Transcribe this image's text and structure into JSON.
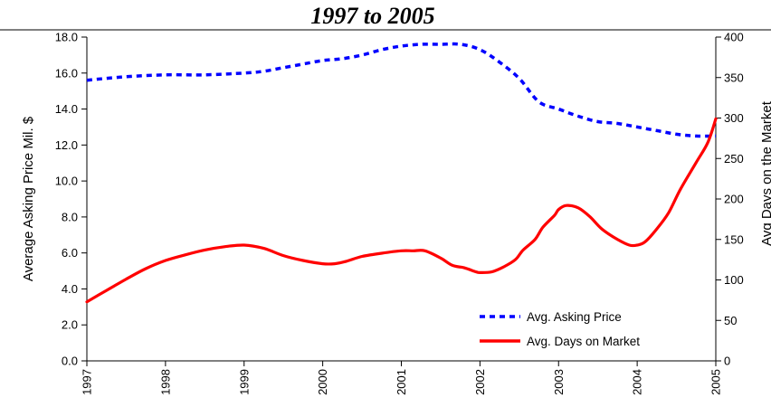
{
  "chart_data": {
    "type": "line",
    "title": "1997 to 2005",
    "x_tick_labels": [
      "1997",
      "1998",
      "1999",
      "2000",
      "2001",
      "2002",
      "2003",
      "2004",
      "2005"
    ],
    "xlim": [
      1997,
      2005
    ],
    "y_left": {
      "label": "Average Asking Price Mil. $",
      "ylim": [
        0,
        18
      ],
      "tick_labels": [
        "0.0",
        "2.0",
        "4.0",
        "6.0",
        "8.0",
        "10.0",
        "12.0",
        "14.0",
        "16.0",
        "18.0"
      ]
    },
    "y_right": {
      "label": "Avg Days on the Market",
      "ylim": [
        0,
        400
      ],
      "tick_labels": [
        "0",
        "50",
        "100",
        "150",
        "200",
        "250",
        "300",
        "350",
        "400"
      ]
    },
    "grid": false,
    "legend_position": "bottom-right",
    "series": [
      {
        "name": "Avg. Asking Price",
        "axis": "left",
        "style": "dashed",
        "color": "#0000ff",
        "x": [
          1997,
          1997.5,
          1998,
          1998.5,
          1999,
          1999.25,
          1999.5,
          1999.75,
          2000,
          2000.25,
          2000.5,
          2000.75,
          2001,
          2001.25,
          2001.5,
          2001.75,
          2002,
          2002.25,
          2002.5,
          2002.75,
          2003,
          2003.25,
          2003.5,
          2003.75,
          2004,
          2004.25,
          2004.5,
          2004.75,
          2005
        ],
        "values": [
          15.6,
          15.8,
          15.9,
          15.9,
          16.0,
          16.1,
          16.3,
          16.5,
          16.7,
          16.8,
          17.0,
          17.3,
          17.5,
          17.6,
          17.6,
          17.6,
          17.3,
          16.6,
          15.7,
          14.4,
          14.0,
          13.6,
          13.3,
          13.2,
          13.0,
          12.8,
          12.6,
          12.5,
          12.5
        ]
      },
      {
        "name": "Avg. Days on Market",
        "axis": "right",
        "style": "solid",
        "color": "#ff0000",
        "x": [
          1997,
          1997.25,
          1997.5,
          1997.75,
          1998,
          1998.25,
          1998.5,
          1998.75,
          1999,
          1999.25,
          1999.5,
          1999.75,
          2000,
          2000.15,
          2000.3,
          2000.5,
          2000.75,
          2001,
          2001.15,
          2001.3,
          2001.5,
          2001.65,
          2001.8,
          2001.95,
          2002,
          2002.15,
          2002.3,
          2002.45,
          2002.55,
          2002.7,
          2002.8,
          2002.95,
          2003,
          2003.1,
          2003.25,
          2003.4,
          2003.55,
          2003.75,
          2003.9,
          2004,
          2004.1,
          2004.25,
          2004.4,
          2004.55,
          2004.75,
          2004.9,
          2005
        ],
        "values": [
          73,
          87,
          101,
          114,
          124,
          131,
          137,
          141,
          143,
          139,
          130,
          124,
          120,
          120,
          123,
          129,
          133,
          136,
          136,
          136,
          127,
          118,
          115,
          110,
          109,
          110,
          116,
          125,
          137,
          150,
          165,
          180,
          187,
          192,
          189,
          178,
          163,
          150,
          143,
          143,
          147,
          163,
          183,
          212,
          245,
          270,
          299
        ]
      }
    ]
  }
}
